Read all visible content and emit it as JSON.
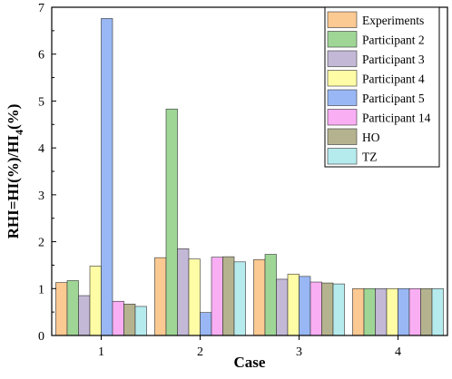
{
  "chart_data": {
    "type": "bar",
    "xlabel": "Case",
    "ylabel": "RHI=HI(%)/HI",
    "ylabel_subscript": "4",
    "ylabel_tail": "(%)",
    "ylim": [
      0,
      7
    ],
    "yticks": [
      "0",
      "1",
      "2",
      "3",
      "4",
      "5",
      "6",
      "7"
    ],
    "categories": [
      "1",
      "2",
      "3",
      "4"
    ],
    "legend_position": "top-right",
    "series": [
      {
        "name": "Experiments",
        "color": "#FBC992",
        "values": [
          1.13,
          1.66,
          1.62,
          1.0
        ]
      },
      {
        "name": "Participant 2",
        "color": "#9FD696",
        "values": [
          1.17,
          4.83,
          1.73,
          1.0
        ]
      },
      {
        "name": "Participant 3",
        "color": "#C3B8D6",
        "values": [
          0.85,
          1.85,
          1.2,
          1.0
        ]
      },
      {
        "name": "Participant 4",
        "color": "#FFFCA6",
        "values": [
          1.48,
          1.63,
          1.31,
          1.0
        ]
      },
      {
        "name": "Participant 5",
        "color": "#99B7F4",
        "values": [
          6.76,
          0.49,
          1.26,
          1.0
        ]
      },
      {
        "name": "Participant 14",
        "color": "#F9AEF4",
        "values": [
          0.73,
          1.67,
          1.14,
          1.0
        ]
      },
      {
        "name": "HO",
        "color": "#B5B38F",
        "values": [
          0.67,
          1.68,
          1.12,
          1.0
        ]
      },
      {
        "name": "TZ",
        "color": "#B6EBEE",
        "values": [
          0.62,
          1.57,
          1.1,
          1.0
        ]
      }
    ]
  }
}
